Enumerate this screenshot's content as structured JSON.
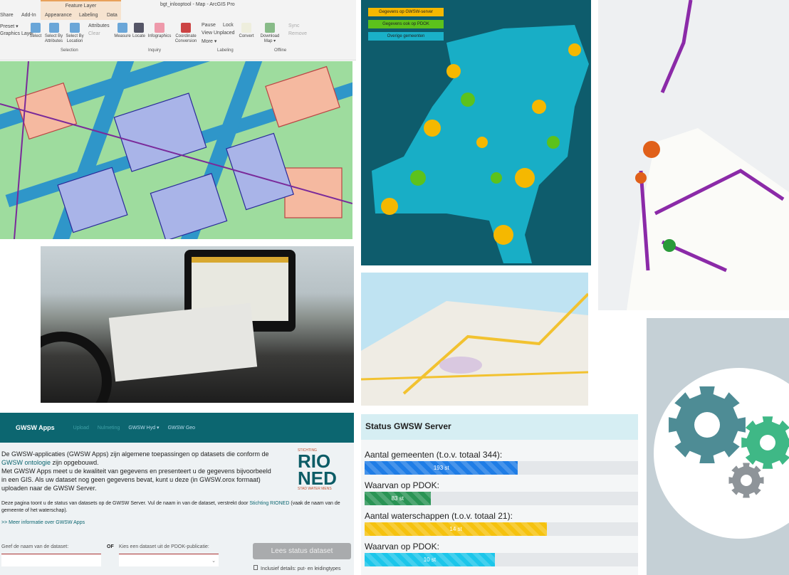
{
  "arcgis": {
    "context_tab": "Feature Layer",
    "title": "bgt_inlooptool - Map - ArcGIS Pro",
    "tabs": [
      "Share",
      "Add-In",
      "Appearance",
      "Labeling",
      "Data"
    ],
    "left_items": [
      "Preset ▾",
      "Graphics Layer"
    ],
    "buttons": [
      "Select",
      "Select By Attributes",
      "Select By Location",
      "Attributes",
      "Clear",
      "Measure",
      "Locate",
      "Infographics",
      "Coordinate Conversion",
      "Pause",
      "Lock",
      "View Unplaced",
      "More ▾",
      "Convert",
      "Download Map ▾",
      "Sync",
      "Remove"
    ],
    "groups": [
      "Selection",
      "Inquiry",
      "Labeling",
      "Offline"
    ]
  },
  "nl_map": {
    "legend": [
      {
        "label": "Gegevens op GWSW-server",
        "color": "#f5b800"
      },
      {
        "label": "Gegevens ook op PDOK",
        "color": "#5cc21c"
      },
      {
        "label": "Overige gemeenten",
        "color": "#1ab0c8"
      }
    ]
  },
  "gwsw": {
    "brand": "GWSW Apps",
    "nav": [
      "Upload",
      "Nulmeting",
      "GWSW Hyd ▾",
      "GWSW Geo"
    ],
    "intro_1a": "De GWSW-applicaties (GWSW Apps) zijn algemene toepassingen op datasets die conform de ",
    "intro_link": "GWSW ontologie",
    "intro_1b": " zijn opgebouwd.",
    "intro_2": "Met GWSW Apps meet u de kwaliteit van gegevens en presenteert u de gegevens bijvoorbeeld in een GIS. Als uw dataset nog geen gegevens bevat, kunt u deze (in GWSW.orox formaat) uploaden naar de GWSW Server.",
    "info_a": "Deze pagina toont u de status van datasets op de GWSW Server. Vul de naam in van de dataset, verstrekt door ",
    "info_link": "Stichting RIONED",
    "info_b": " (vaak de naam van de gemeente of het waterschap).",
    "more_link": ">> Meer informatie over GWSW Apps",
    "name_label": "Geef de naam van de dataset:",
    "or": "OF",
    "select_label": "Kies een dataset uit de PDOK-publicatie:",
    "button": "Lees status dataset",
    "checkbox": "Inclusief details: put- en leidingtypes",
    "logo": {
      "top": "STICHTING",
      "l1": "RIO",
      "l2": "NED",
      "bottom": "STAD WATER MENS"
    }
  },
  "status": {
    "title": "Status GWSW Server",
    "rows": [
      {
        "label": "Aantal gemeenten (t.o.v. totaal 344):",
        "value": "193 st",
        "fraction": 0.561,
        "color": "#1f7de6"
      },
      {
        "label": "Waarvan op PDOK:",
        "value": "83 st",
        "fraction": 0.241,
        "color": "#2a9455"
      },
      {
        "label": "Aantal waterschappen (t.o.v. totaal 21):",
        "value": "14 st",
        "fraction": 0.667,
        "color": "#f5c20f"
      },
      {
        "label": "Waarvan op PDOK:",
        "value": "10 st",
        "fraction": 0.476,
        "color": "#1cc6ea"
      }
    ]
  }
}
